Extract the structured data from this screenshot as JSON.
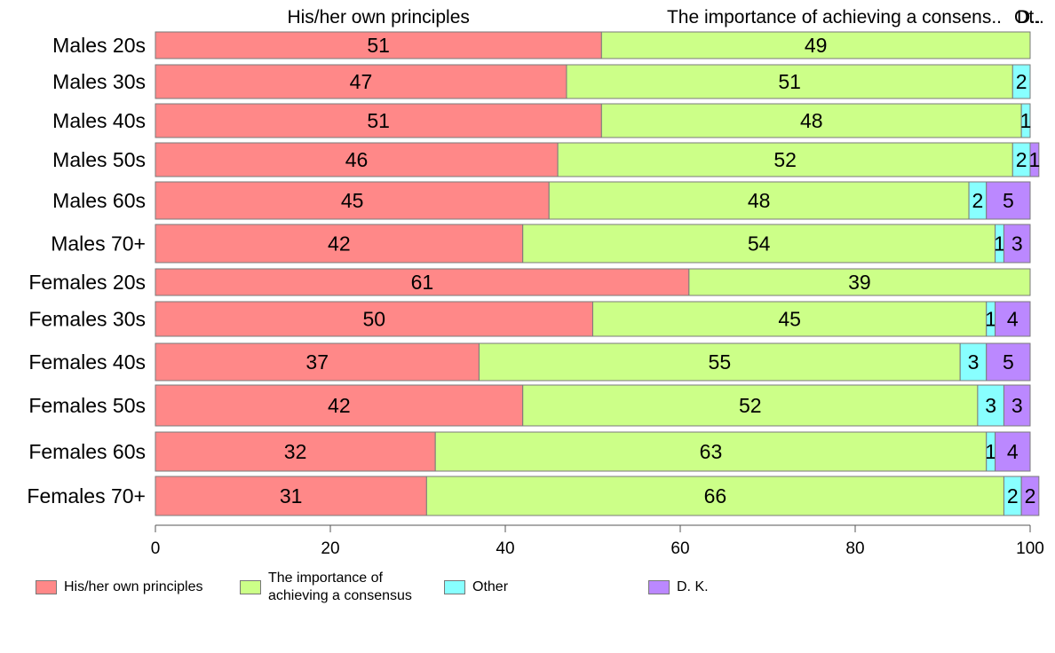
{
  "chart_data": {
    "type": "bar",
    "orientation": "horizontal",
    "stacked": true,
    "xlim": [
      0,
      100
    ],
    "xticks": [
      0,
      20,
      40,
      60,
      80,
      100
    ],
    "categories": [
      "Males 20s",
      "Males 30s",
      "Males 40s",
      "Males 50s",
      "Males 60s",
      "Males 70+",
      "Females 20s",
      "Females 30s",
      "Females 40s",
      "Females 50s",
      "Females 60s",
      "Females 70+"
    ],
    "series": [
      {
        "name": "His/her own principles",
        "color": "#FF8888",
        "values": [
          51,
          47,
          51,
          46,
          45,
          42,
          61,
          50,
          37,
          42,
          32,
          31
        ]
      },
      {
        "name": "The importance of achieving a consensus",
        "color": "#CCFF88",
        "values": [
          49,
          51,
          48,
          52,
          48,
          54,
          39,
          45,
          55,
          52,
          63,
          66
        ]
      },
      {
        "name": "Other",
        "color": "#88FFFF",
        "values": [
          0,
          2,
          1,
          2,
          2,
          1,
          0,
          1,
          3,
          3,
          1,
          2
        ]
      },
      {
        "name": "D. K.",
        "color": "#BB88FF",
        "values": [
          0,
          0,
          0,
          1,
          5,
          3,
          0,
          4,
          5,
          3,
          4,
          2
        ]
      }
    ],
    "top_labels": [
      "His/her own principles",
      "The importance of achieving a consens..",
      "Ot..",
      "D.."
    ]
  },
  "legend": {
    "items": [
      {
        "label": "His/her own principles",
        "color": "#FF8888"
      },
      {
        "label": "The importance of\nachieving a consensus",
        "color": "#CCFF88"
      },
      {
        "label": "Other",
        "color": "#88FFFF"
      },
      {
        "label": "D. K.",
        "color": "#BB88FF"
      }
    ]
  }
}
